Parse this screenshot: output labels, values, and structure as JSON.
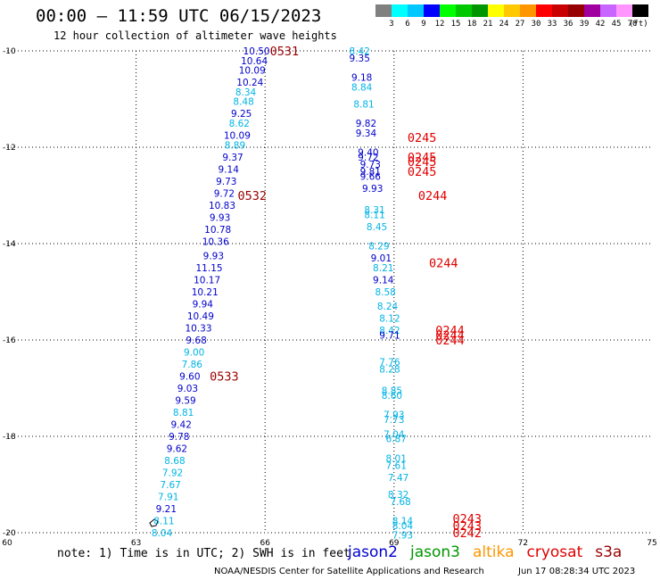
{
  "header": {
    "title": "00:00 – 11:59 UTC 06/15/2023",
    "subtitle": "12 hour collection of altimeter wave heights"
  },
  "legend": {
    "ticks": [
      "3",
      "6",
      "9",
      "12",
      "15",
      "18",
      "21",
      "24",
      "27",
      "30",
      "33",
      "36",
      "39",
      "42",
      "45",
      "70"
    ],
    "unit": "(ft)",
    "colors": [
      "#808080",
      "#00ffff",
      "#00c8ff",
      "#0000ff",
      "#00ff00",
      "#00c800",
      "#009600",
      "#ffff00",
      "#ffc800",
      "#ff9600",
      "#ff0000",
      "#c80000",
      "#960000",
      "#a000a0",
      "#c864ff",
      "#ff96ff",
      "#000000"
    ]
  },
  "chart_data": {
    "type": "scatter",
    "xlim": [
      60,
      75
    ],
    "ylim": [
      -20,
      -10
    ],
    "x_ticks": [
      "60",
      "63",
      "66",
      "69",
      "72",
      "75"
    ],
    "y_ticks": [
      "-10",
      "-12",
      "-14",
      "-16",
      "-18",
      "-20"
    ],
    "grid": true,
    "series": [
      {
        "name": "jason2",
        "points": [
          {
            "x": 65.8,
            "y": -10.0,
            "label": "10.50",
            "c": "#0000cc"
          },
          {
            "x": 65.75,
            "y": -10.2,
            "label": "10.64",
            "c": "#0000cc"
          },
          {
            "x": 65.7,
            "y": -10.4,
            "label": "10.09",
            "c": "#0000cc"
          },
          {
            "x": 65.65,
            "y": -10.65,
            "label": "10.24",
            "c": "#0000cc"
          },
          {
            "x": 65.55,
            "y": -10.85,
            "label": "8.34",
            "c": "#00b4e6"
          },
          {
            "x": 65.5,
            "y": -11.05,
            "label": "8.48",
            "c": "#00b4e6"
          },
          {
            "x": 65.45,
            "y": -11.3,
            "label": "9.25",
            "c": "#0000cc"
          },
          {
            "x": 65.4,
            "y": -11.5,
            "label": "8.62",
            "c": "#00b4e6"
          },
          {
            "x": 65.35,
            "y": -11.75,
            "label": "10.09",
            "c": "#0000cc"
          },
          {
            "x": 65.3,
            "y": -11.95,
            "label": "8.89",
            "c": "#00b4e6"
          },
          {
            "x": 65.25,
            "y": -12.2,
            "label": "9.37",
            "c": "#0000cc"
          },
          {
            "x": 65.15,
            "y": -12.45,
            "label": "9.14",
            "c": "#0000cc"
          },
          {
            "x": 65.1,
            "y": -12.7,
            "label": "9.73",
            "c": "#0000cc"
          },
          {
            "x": 65.05,
            "y": -12.95,
            "label": "9.72",
            "c": "#0000cc"
          },
          {
            "x": 65.0,
            "y": -13.2,
            "label": "10.83",
            "c": "#0000cc"
          },
          {
            "x": 64.95,
            "y": -13.45,
            "label": "9.93",
            "c": "#0000cc"
          },
          {
            "x": 64.9,
            "y": -13.7,
            "label": "10.78",
            "c": "#0000cc"
          },
          {
            "x": 64.85,
            "y": -13.95,
            "label": "10.36",
            "c": "#0000cc"
          },
          {
            "x": 64.8,
            "y": -14.25,
            "label": "9.93",
            "c": "#0000cc"
          },
          {
            "x": 64.7,
            "y": -14.5,
            "label": "11.15",
            "c": "#0000cc"
          },
          {
            "x": 64.65,
            "y": -14.75,
            "label": "10.17",
            "c": "#0000cc"
          },
          {
            "x": 64.6,
            "y": -15.0,
            "label": "10.21",
            "c": "#0000cc"
          },
          {
            "x": 64.55,
            "y": -15.25,
            "label": "9.94",
            "c": "#0000cc"
          },
          {
            "x": 64.5,
            "y": -15.5,
            "label": "10.49",
            "c": "#0000cc"
          },
          {
            "x": 64.45,
            "y": -15.75,
            "label": "10.33",
            "c": "#0000cc"
          },
          {
            "x": 64.4,
            "y": -16.0,
            "label": "9.68",
            "c": "#0000cc"
          },
          {
            "x": 64.35,
            "y": -16.25,
            "label": "9.00",
            "c": "#00b4e6"
          },
          {
            "x": 64.3,
            "y": -16.5,
            "label": "7.86",
            "c": "#00b4e6"
          },
          {
            "x": 64.25,
            "y": -16.75,
            "label": "9.60",
            "c": "#0000cc"
          },
          {
            "x": 64.2,
            "y": -17.0,
            "label": "9.03",
            "c": "#0000cc"
          },
          {
            "x": 64.15,
            "y": -17.25,
            "label": "9.59",
            "c": "#0000cc"
          },
          {
            "x": 64.1,
            "y": -17.5,
            "label": "8.81",
            "c": "#00b4e6"
          },
          {
            "x": 64.05,
            "y": -17.75,
            "label": "9.42",
            "c": "#0000cc"
          },
          {
            "x": 64.0,
            "y": -18.0,
            "label": "9.78",
            "c": "#0000cc"
          },
          {
            "x": 63.95,
            "y": -18.25,
            "label": "9.62",
            "c": "#0000cc"
          },
          {
            "x": 63.9,
            "y": -18.5,
            "label": "8.68",
            "c": "#00b4e6"
          },
          {
            "x": 63.85,
            "y": -18.75,
            "label": "7.92",
            "c": "#00b4e6"
          },
          {
            "x": 63.8,
            "y": -19.0,
            "label": "7.67",
            "c": "#00b4e6"
          },
          {
            "x": 63.75,
            "y": -19.25,
            "label": "7.91",
            "c": "#00b4e6"
          },
          {
            "x": 63.7,
            "y": -19.5,
            "label": "9.21",
            "c": "#0000cc"
          },
          {
            "x": 63.65,
            "y": -19.75,
            "label": "8.11",
            "c": "#00b4e6"
          },
          {
            "x": 63.6,
            "y": -20.0,
            "label": "8.04",
            "c": "#00b4e6"
          }
        ]
      },
      {
        "name": "jason3",
        "points": [
          {
            "x": 68.2,
            "y": -10.0,
            "label": "8.42",
            "c": "#00b4e6"
          },
          {
            "x": 68.2,
            "y": -10.15,
            "label": "9.35",
            "c": "#0000cc"
          },
          {
            "x": 68.25,
            "y": -10.55,
            "label": "9.18",
            "c": "#0000cc"
          },
          {
            "x": 68.25,
            "y": -10.75,
            "label": "8.84",
            "c": "#00b4e6"
          },
          {
            "x": 68.3,
            "y": -11.1,
            "label": "8.81",
            "c": "#00b4e6"
          },
          {
            "x": 68.35,
            "y": -11.5,
            "label": "9.82",
            "c": "#0000cc"
          },
          {
            "x": 68.35,
            "y": -11.7,
            "label": "9.34",
            "c": "#0000cc"
          },
          {
            "x": 68.4,
            "y": -12.1,
            "label": "9.40",
            "c": "#0000cc"
          },
          {
            "x": 68.4,
            "y": -12.2,
            "label": "9.72",
            "c": "#0000cc"
          },
          {
            "x": 68.45,
            "y": -12.35,
            "label": "9.73",
            "c": "#0000cc"
          },
          {
            "x": 68.45,
            "y": -12.5,
            "label": "9.81",
            "c": "#0000cc"
          },
          {
            "x": 68.45,
            "y": -12.6,
            "label": "9.66",
            "c": "#0000cc"
          },
          {
            "x": 68.5,
            "y": -12.85,
            "label": "9.93",
            "c": "#0000cc"
          },
          {
            "x": 68.55,
            "y": -13.3,
            "label": "8.31",
            "c": "#00b4e6"
          },
          {
            "x": 68.55,
            "y": -13.4,
            "label": "8.11",
            "c": "#00b4e6"
          },
          {
            "x": 68.6,
            "y": -13.65,
            "label": "8.45",
            "c": "#00b4e6"
          },
          {
            "x": 68.65,
            "y": -14.05,
            "label": "8.29",
            "c": "#00b4e6"
          },
          {
            "x": 68.7,
            "y": -14.3,
            "label": "9.01",
            "c": "#0000cc"
          },
          {
            "x": 68.75,
            "y": -14.5,
            "label": "8.21",
            "c": "#00b4e6"
          },
          {
            "x": 68.75,
            "y": -14.75,
            "label": "9.14",
            "c": "#0000cc"
          },
          {
            "x": 68.8,
            "y": -15.0,
            "label": "8.58",
            "c": "#00b4e6"
          },
          {
            "x": 68.85,
            "y": -15.3,
            "label": "8.24",
            "c": "#00b4e6"
          },
          {
            "x": 68.9,
            "y": -15.55,
            "label": "8.12",
            "c": "#00b4e6"
          },
          {
            "x": 68.9,
            "y": -15.8,
            "label": "8.42",
            "c": "#00b4e6"
          },
          {
            "x": 68.9,
            "y": -15.9,
            "label": "9.71",
            "c": "#0000cc"
          },
          {
            "x": 68.9,
            "y": -16.45,
            "label": "7.76",
            "c": "#00b4e6"
          },
          {
            "x": 68.9,
            "y": -16.6,
            "label": "8.28",
            "c": "#00b4e6"
          },
          {
            "x": 68.95,
            "y": -17.05,
            "label": "8.85",
            "c": "#00b4e6"
          },
          {
            "x": 68.95,
            "y": -17.15,
            "label": "8.60",
            "c": "#00b4e6"
          },
          {
            "x": 69.0,
            "y": -17.55,
            "label": "7.93",
            "c": "#00b4e6"
          },
          {
            "x": 69.0,
            "y": -17.65,
            "label": "7.73",
            "c": "#00b4e6"
          },
          {
            "x": 69.0,
            "y": -17.95,
            "label": "7.04",
            "c": "#00b4e6"
          },
          {
            "x": 69.05,
            "y": -18.05,
            "label": "6.87",
            "c": "#00b4e6"
          },
          {
            "x": 69.05,
            "y": -18.45,
            "label": "8.01",
            "c": "#00b4e6"
          },
          {
            "x": 69.05,
            "y": -18.6,
            "label": "7.61",
            "c": "#00b4e6"
          },
          {
            "x": 69.1,
            "y": -18.85,
            "label": "7.47",
            "c": "#00b4e6"
          },
          {
            "x": 69.1,
            "y": -19.2,
            "label": "8.32",
            "c": "#00b4e6"
          },
          {
            "x": 69.15,
            "y": -19.35,
            "label": "7.68",
            "c": "#00b4e6"
          },
          {
            "x": 69.2,
            "y": -19.75,
            "label": "8.14",
            "c": "#00b4e6"
          },
          {
            "x": 69.2,
            "y": -19.85,
            "label": "8.04",
            "c": "#00b4e6"
          },
          {
            "x": 69.2,
            "y": -20.05,
            "label": "7.93",
            "c": "#00b4e6"
          }
        ]
      }
    ],
    "time_labels": [
      {
        "x": 66.45,
        "y": -10.0,
        "label": "0531",
        "c": "#990000"
      },
      {
        "x": 65.7,
        "y": -13.0,
        "label": "0532",
        "c": "#990000"
      },
      {
        "x": 65.05,
        "y": -16.75,
        "label": "0533",
        "c": "#990000"
      },
      {
        "x": 69.65,
        "y": -11.8,
        "label": "0245",
        "c": "#e00000"
      },
      {
        "x": 69.65,
        "y": -12.2,
        "label": "0245",
        "c": "#e00000"
      },
      {
        "x": 69.65,
        "y": -12.3,
        "label": "0245",
        "c": "#e00000"
      },
      {
        "x": 69.65,
        "y": -12.5,
        "label": "0245",
        "c": "#e00000"
      },
      {
        "x": 69.9,
        "y": -13.0,
        "label": "0244",
        "c": "#e00000"
      },
      {
        "x": 70.15,
        "y": -14.4,
        "label": "0244",
        "c": "#e00000"
      },
      {
        "x": 70.3,
        "y": -15.8,
        "label": "0244",
        "c": "#e00000"
      },
      {
        "x": 70.3,
        "y": -15.9,
        "label": "0244",
        "c": "#e00000"
      },
      {
        "x": 70.3,
        "y": -16.0,
        "label": "0244",
        "c": "#e00000"
      },
      {
        "x": 70.7,
        "y": -19.7,
        "label": "0243",
        "c": "#e00000"
      },
      {
        "x": 70.7,
        "y": -19.85,
        "label": "0243",
        "c": "#e00000"
      },
      {
        "x": 70.7,
        "y": -20.0,
        "label": "0242",
        "c": "#e00000"
      }
    ]
  },
  "note": "note: 1) Time is in UTC; 2) SWH is in feet",
  "satellites": [
    {
      "name": "jason2",
      "color": "#0000cc"
    },
    {
      "name": "jason3",
      "color": "#009600"
    },
    {
      "name": "altika",
      "color": "#ff9600"
    },
    {
      "name": "cryosat",
      "color": "#e00000"
    },
    {
      "name": "s3a",
      "color": "#990000"
    }
  ],
  "footer": {
    "left": "NOAA/NESDIS Center for Satellite Applications and Research",
    "right": "Jun 17 08:28:34 UTC 2023"
  }
}
